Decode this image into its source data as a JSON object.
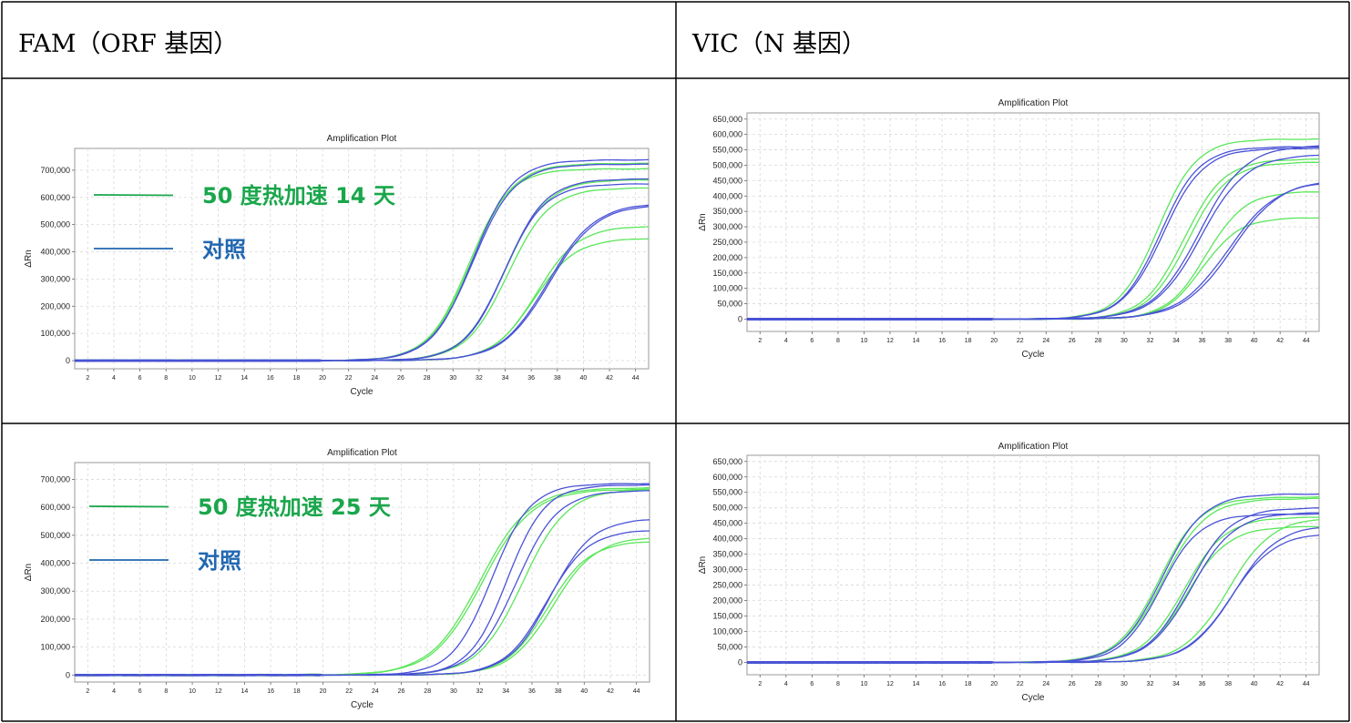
{
  "headers": {
    "left": "FAM（ORF 基因）",
    "right": "VIC（N  基因）"
  },
  "colors": {
    "green": "#5ae65a",
    "green_dark": "#1aa050",
    "blue": "#4a52d6",
    "blue_dark": "#2020a8",
    "legend_green": "#1aa64b",
    "legend_blue": "#2167b0",
    "grid": "#d8d8d8"
  },
  "chart_data": [
    {
      "type": "line",
      "title": "Amplification Plot",
      "xlabel": "Cycle",
      "ylabel": "ΔRn",
      "xlim": [
        1,
        45
      ],
      "ylim": [
        -30000,
        780000
      ],
      "x_ticks": [
        2,
        4,
        6,
        8,
        10,
        12,
        14,
        16,
        18,
        20,
        22,
        24,
        26,
        28,
        30,
        32,
        34,
        36,
        38,
        40,
        42,
        44
      ],
      "y_ticks": [
        0,
        100000,
        200000,
        300000,
        400000,
        500000,
        600000,
        700000
      ],
      "y_tick_labels": [
        "0",
        "100,000",
        "200,000",
        "300,000",
        "400,000",
        "500,000",
        "600,000",
        "700,000"
      ],
      "grid": true,
      "legend": [
        {
          "label": "50 度热加速 14 天",
          "color": "green"
        },
        {
          "label": "对照",
          "color": "blue"
        }
      ],
      "series": [
        {
          "color": "green",
          "plateau": 705000,
          "ct": 31.2,
          "slope": 1.55
        },
        {
          "color": "green",
          "plateau": 725000,
          "ct": 31.4,
          "slope": 1.6
        },
        {
          "color": "blue",
          "plateau": 738000,
          "ct": 31.5,
          "slope": 1.55
        },
        {
          "color": "blue",
          "plateau": 722000,
          "ct": 31.5,
          "slope": 1.6
        },
        {
          "color": "green",
          "plateau": 635000,
          "ct": 34.2,
          "slope": 1.6
        },
        {
          "color": "green",
          "plateau": 665000,
          "ct": 34.0,
          "slope": 1.6
        },
        {
          "color": "blue",
          "plateau": 668000,
          "ct": 34.0,
          "slope": 1.55
        },
        {
          "color": "blue",
          "plateau": 650000,
          "ct": 33.9,
          "slope": 1.55
        },
        {
          "color": "green",
          "plateau": 450000,
          "ct": 36.2,
          "slope": 1.6
        },
        {
          "color": "green",
          "plateau": 495000,
          "ct": 36.4,
          "slope": 1.6
        },
        {
          "color": "blue",
          "plateau": 580000,
          "ct": 37.3,
          "slope": 1.8
        },
        {
          "color": "blue",
          "plateau": 575000,
          "ct": 37.4,
          "slope": 1.8
        }
      ]
    },
    {
      "type": "line",
      "title": "Amplification Plot",
      "xlabel": "Cycle",
      "ylabel": "ΔRn",
      "xlim": [
        1,
        45
      ],
      "ylim": [
        -40000,
        670000
      ],
      "x_ticks": [
        2,
        4,
        6,
        8,
        10,
        12,
        14,
        16,
        18,
        20,
        22,
        24,
        26,
        28,
        30,
        32,
        34,
        36,
        38,
        40,
        42,
        44
      ],
      "y_ticks": [
        0,
        50000,
        100000,
        150000,
        200000,
        250000,
        300000,
        350000,
        400000,
        450000,
        500000,
        550000,
        600000,
        650000
      ],
      "y_tick_labels": [
        "0",
        "50,000",
        "100,000",
        "150,000",
        "200,000",
        "250,000",
        "300,000",
        "350,000",
        "400,000",
        "450,000",
        "500,000",
        "550,000",
        "600,000",
        "650,000"
      ],
      "grid": true,
      "legend": [],
      "series": [
        {
          "color": "green",
          "plateau": 585000,
          "ct": 32.6,
          "slope": 1.5
        },
        {
          "color": "blue",
          "plateau": 560000,
          "ct": 32.8,
          "slope": 1.5
        },
        {
          "color": "blue",
          "plateau": 555000,
          "ct": 33.0,
          "slope": 1.55
        },
        {
          "color": "green",
          "plateau": 520000,
          "ct": 34.6,
          "slope": 1.55
        },
        {
          "color": "green",
          "plateau": 510000,
          "ct": 34.9,
          "slope": 1.55
        },
        {
          "color": "blue",
          "plateau": 565000,
          "ct": 35.8,
          "slope": 1.75
        },
        {
          "color": "blue",
          "plateau": 535000,
          "ct": 35.9,
          "slope": 1.75
        },
        {
          "color": "green",
          "plateau": 415000,
          "ct": 36.3,
          "slope": 1.5
        },
        {
          "color": "green",
          "plateau": 330000,
          "ct": 36.0,
          "slope": 1.45
        },
        {
          "color": "blue",
          "plateau": 450000,
          "ct": 38.0,
          "slope": 1.9
        },
        {
          "color": "blue",
          "plateau": 455000,
          "ct": 38.3,
          "slope": 1.9
        }
      ]
    },
    {
      "type": "line",
      "title": "Amplification Plot",
      "xlabel": "Cycle",
      "ylabel": "ΔRn",
      "xlim": [
        1,
        45
      ],
      "ylim": [
        -25000,
        760000
      ],
      "x_ticks": [
        2,
        4,
        6,
        8,
        10,
        12,
        14,
        16,
        18,
        20,
        22,
        24,
        26,
        28,
        30,
        32,
        34,
        36,
        38,
        40,
        42,
        44
      ],
      "y_ticks": [
        0,
        100000,
        200000,
        300000,
        400000,
        500000,
        600000,
        700000
      ],
      "y_tick_labels": [
        "0",
        "100,000",
        "200,000",
        "300,000",
        "400,000",
        "500,000",
        "600,000",
        "700,000"
      ],
      "grid": true,
      "legend": [
        {
          "label": "50 度热加速 25 天",
          "color": "green"
        },
        {
          "label": "对照",
          "color": "blue"
        }
      ],
      "series": [
        {
          "color": "green",
          "plateau": 670000,
          "ct": 32.0,
          "slope": 1.9
        },
        {
          "color": "green",
          "plateau": 665000,
          "ct": 32.2,
          "slope": 1.9
        },
        {
          "color": "blue",
          "plateau": 685000,
          "ct": 32.9,
          "slope": 1.5
        },
        {
          "color": "blue",
          "plateau": 680000,
          "ct": 34.1,
          "slope": 1.45
        },
        {
          "color": "green",
          "plateau": 665000,
          "ct": 35.3,
          "slope": 1.7
        },
        {
          "color": "blue",
          "plateau": 660000,
          "ct": 34.8,
          "slope": 1.6
        },
        {
          "color": "green",
          "plateau": 480000,
          "ct": 37.2,
          "slope": 1.6
        },
        {
          "color": "green",
          "plateau": 495000,
          "ct": 37.6,
          "slope": 1.65
        },
        {
          "color": "blue",
          "plateau": 560000,
          "ct": 37.4,
          "slope": 1.6
        },
        {
          "color": "blue",
          "plateau": 520000,
          "ct": 37.1,
          "slope": 1.6
        }
      ]
    },
    {
      "type": "line",
      "title": "Amplification Plot",
      "xlabel": "Cycle",
      "ylabel": "ΔRn",
      "xlim": [
        1,
        45
      ],
      "ylim": [
        -40000,
        670000
      ],
      "x_ticks": [
        2,
        4,
        6,
        8,
        10,
        12,
        14,
        16,
        18,
        20,
        22,
        24,
        26,
        28,
        30,
        32,
        34,
        36,
        38,
        40,
        42,
        44
      ],
      "y_ticks": [
        0,
        50000,
        100000,
        150000,
        200000,
        250000,
        300000,
        350000,
        400000,
        450000,
        500000,
        550000,
        600000,
        650000
      ],
      "y_tick_labels": [
        "0",
        "50,000",
        "100,000",
        "150,000",
        "200,000",
        "250,000",
        "300,000",
        "350,000",
        "400,000",
        "450,000",
        "500,000",
        "550,000",
        "600,000",
        "650,000"
      ],
      "grid": true,
      "legend": [],
      "series": [
        {
          "color": "green",
          "plateau": 535000,
          "ct": 32.7,
          "slope": 1.6
        },
        {
          "color": "blue",
          "plateau": 545000,
          "ct": 32.9,
          "slope": 1.6
        },
        {
          "color": "green",
          "plateau": 530000,
          "ct": 33.0,
          "slope": 1.65
        },
        {
          "color": "blue",
          "plateau": 480000,
          "ct": 32.8,
          "slope": 1.5
        },
        {
          "color": "green",
          "plateau": 470000,
          "ct": 34.6,
          "slope": 1.6
        },
        {
          "color": "blue",
          "plateau": 500000,
          "ct": 35.0,
          "slope": 1.6
        },
        {
          "color": "blue",
          "plateau": 485000,
          "ct": 35.2,
          "slope": 1.65
        },
        {
          "color": "green",
          "plateau": 440000,
          "ct": 34.8,
          "slope": 1.6
        },
        {
          "color": "green",
          "plateau": 470000,
          "ct": 38.0,
          "slope": 1.7
        },
        {
          "color": "blue",
          "plateau": 445000,
          "ct": 38.4,
          "slope": 1.7
        },
        {
          "color": "blue",
          "plateau": 420000,
          "ct": 38.2,
          "slope": 1.7
        }
      ]
    }
  ]
}
